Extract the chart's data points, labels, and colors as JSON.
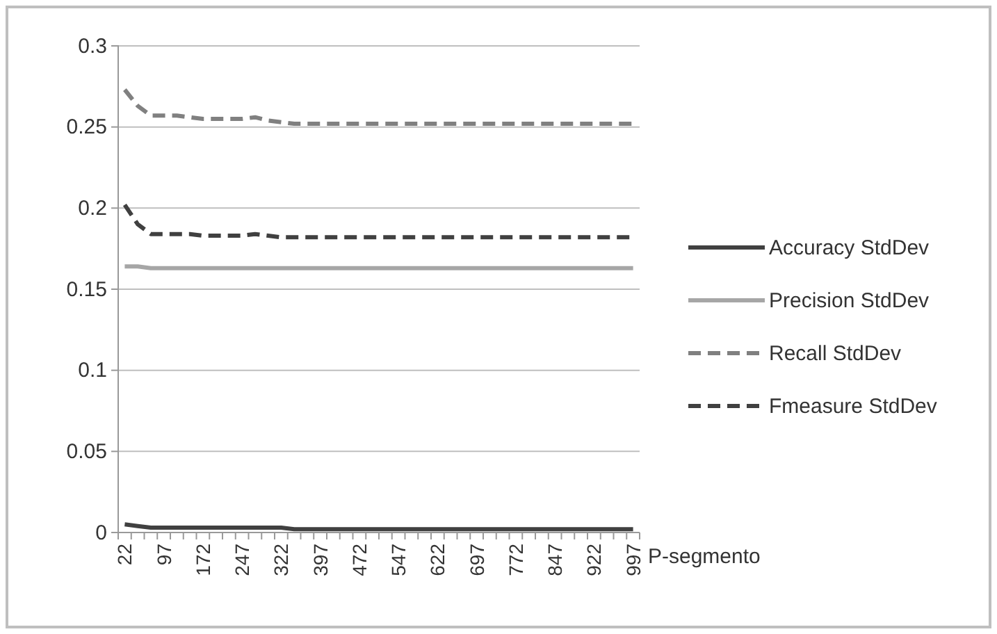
{
  "chart_data": {
    "type": "line",
    "xlabel": "P-segmento",
    "categories": [
      "22",
      null,
      null,
      "97",
      null,
      null,
      "172",
      null,
      null,
      "247",
      null,
      null,
      "322",
      null,
      null,
      "397",
      null,
      null,
      "472",
      null,
      null,
      "547",
      null,
      null,
      "622",
      null,
      null,
      "697",
      null,
      null,
      "772",
      null,
      null,
      "847",
      null,
      null,
      "922",
      null,
      null,
      "997"
    ],
    "series": [
      {
        "name": "Accuracy StdDev",
        "color": "#404040",
        "line_style": "solid",
        "values": [
          0.005,
          0.004,
          0.003,
          0.003,
          0.003,
          0.003,
          0.003,
          0.003,
          0.003,
          0.003,
          0.003,
          0.003,
          0.003,
          0.002,
          0.002,
          0.002,
          0.002,
          0.002,
          0.002,
          0.002,
          0.002,
          0.002,
          0.002,
          0.002,
          0.002,
          0.002,
          0.002,
          0.002,
          0.002,
          0.002,
          0.002,
          0.002,
          0.002,
          0.002,
          0.002,
          0.002,
          0.002,
          0.002,
          0.002,
          0.002
        ]
      },
      {
        "name": "Precision StdDev",
        "color": "#a6a6a6",
        "line_style": "solid",
        "values": [
          0.164,
          0.164,
          0.163,
          0.163,
          0.163,
          0.163,
          0.163,
          0.163,
          0.163,
          0.163,
          0.163,
          0.163,
          0.163,
          0.163,
          0.163,
          0.163,
          0.163,
          0.163,
          0.163,
          0.163,
          0.163,
          0.163,
          0.163,
          0.163,
          0.163,
          0.163,
          0.163,
          0.163,
          0.163,
          0.163,
          0.163,
          0.163,
          0.163,
          0.163,
          0.163,
          0.163,
          0.163,
          0.163,
          0.163,
          0.163
        ]
      },
      {
        "name": "Recall StdDev",
        "color": "#808080",
        "line_style": "dashed",
        "values": [
          0.273,
          0.263,
          0.257,
          0.257,
          0.257,
          0.256,
          0.255,
          0.255,
          0.255,
          0.255,
          0.256,
          0.254,
          0.253,
          0.252,
          0.252,
          0.252,
          0.252,
          0.252,
          0.252,
          0.252,
          0.252,
          0.252,
          0.252,
          0.252,
          0.252,
          0.252,
          0.252,
          0.252,
          0.252,
          0.252,
          0.252,
          0.252,
          0.252,
          0.252,
          0.252,
          0.252,
          0.252,
          0.252,
          0.252,
          0.252
        ]
      },
      {
        "name": "Fmeasure StdDev",
        "color": "#404040",
        "line_style": "dashed",
        "values": [
          0.202,
          0.19,
          0.184,
          0.184,
          0.184,
          0.184,
          0.183,
          0.183,
          0.183,
          0.183,
          0.184,
          0.183,
          0.182,
          0.182,
          0.182,
          0.182,
          0.182,
          0.182,
          0.182,
          0.182,
          0.182,
          0.182,
          0.182,
          0.182,
          0.182,
          0.182,
          0.182,
          0.182,
          0.182,
          0.182,
          0.182,
          0.182,
          0.182,
          0.182,
          0.182,
          0.182,
          0.182,
          0.182,
          0.182,
          0.182
        ]
      }
    ],
    "ylim": [
      0,
      0.3
    ],
    "yticks": [
      0,
      {
        "value": 0.05,
        "label": "0.05"
      },
      {
        "value": 0.1,
        "label": "0.1"
      },
      {
        "value": 0.15,
        "label": "0.15"
      },
      {
        "value": 0.2,
        "label": "0.2"
      },
      {
        "value": 0.25,
        "label": "0.25"
      },
      {
        "value": 0.3,
        "label": "0.3"
      }
    ],
    "grid": "y",
    "legend": "right",
    "marker": "none"
  }
}
